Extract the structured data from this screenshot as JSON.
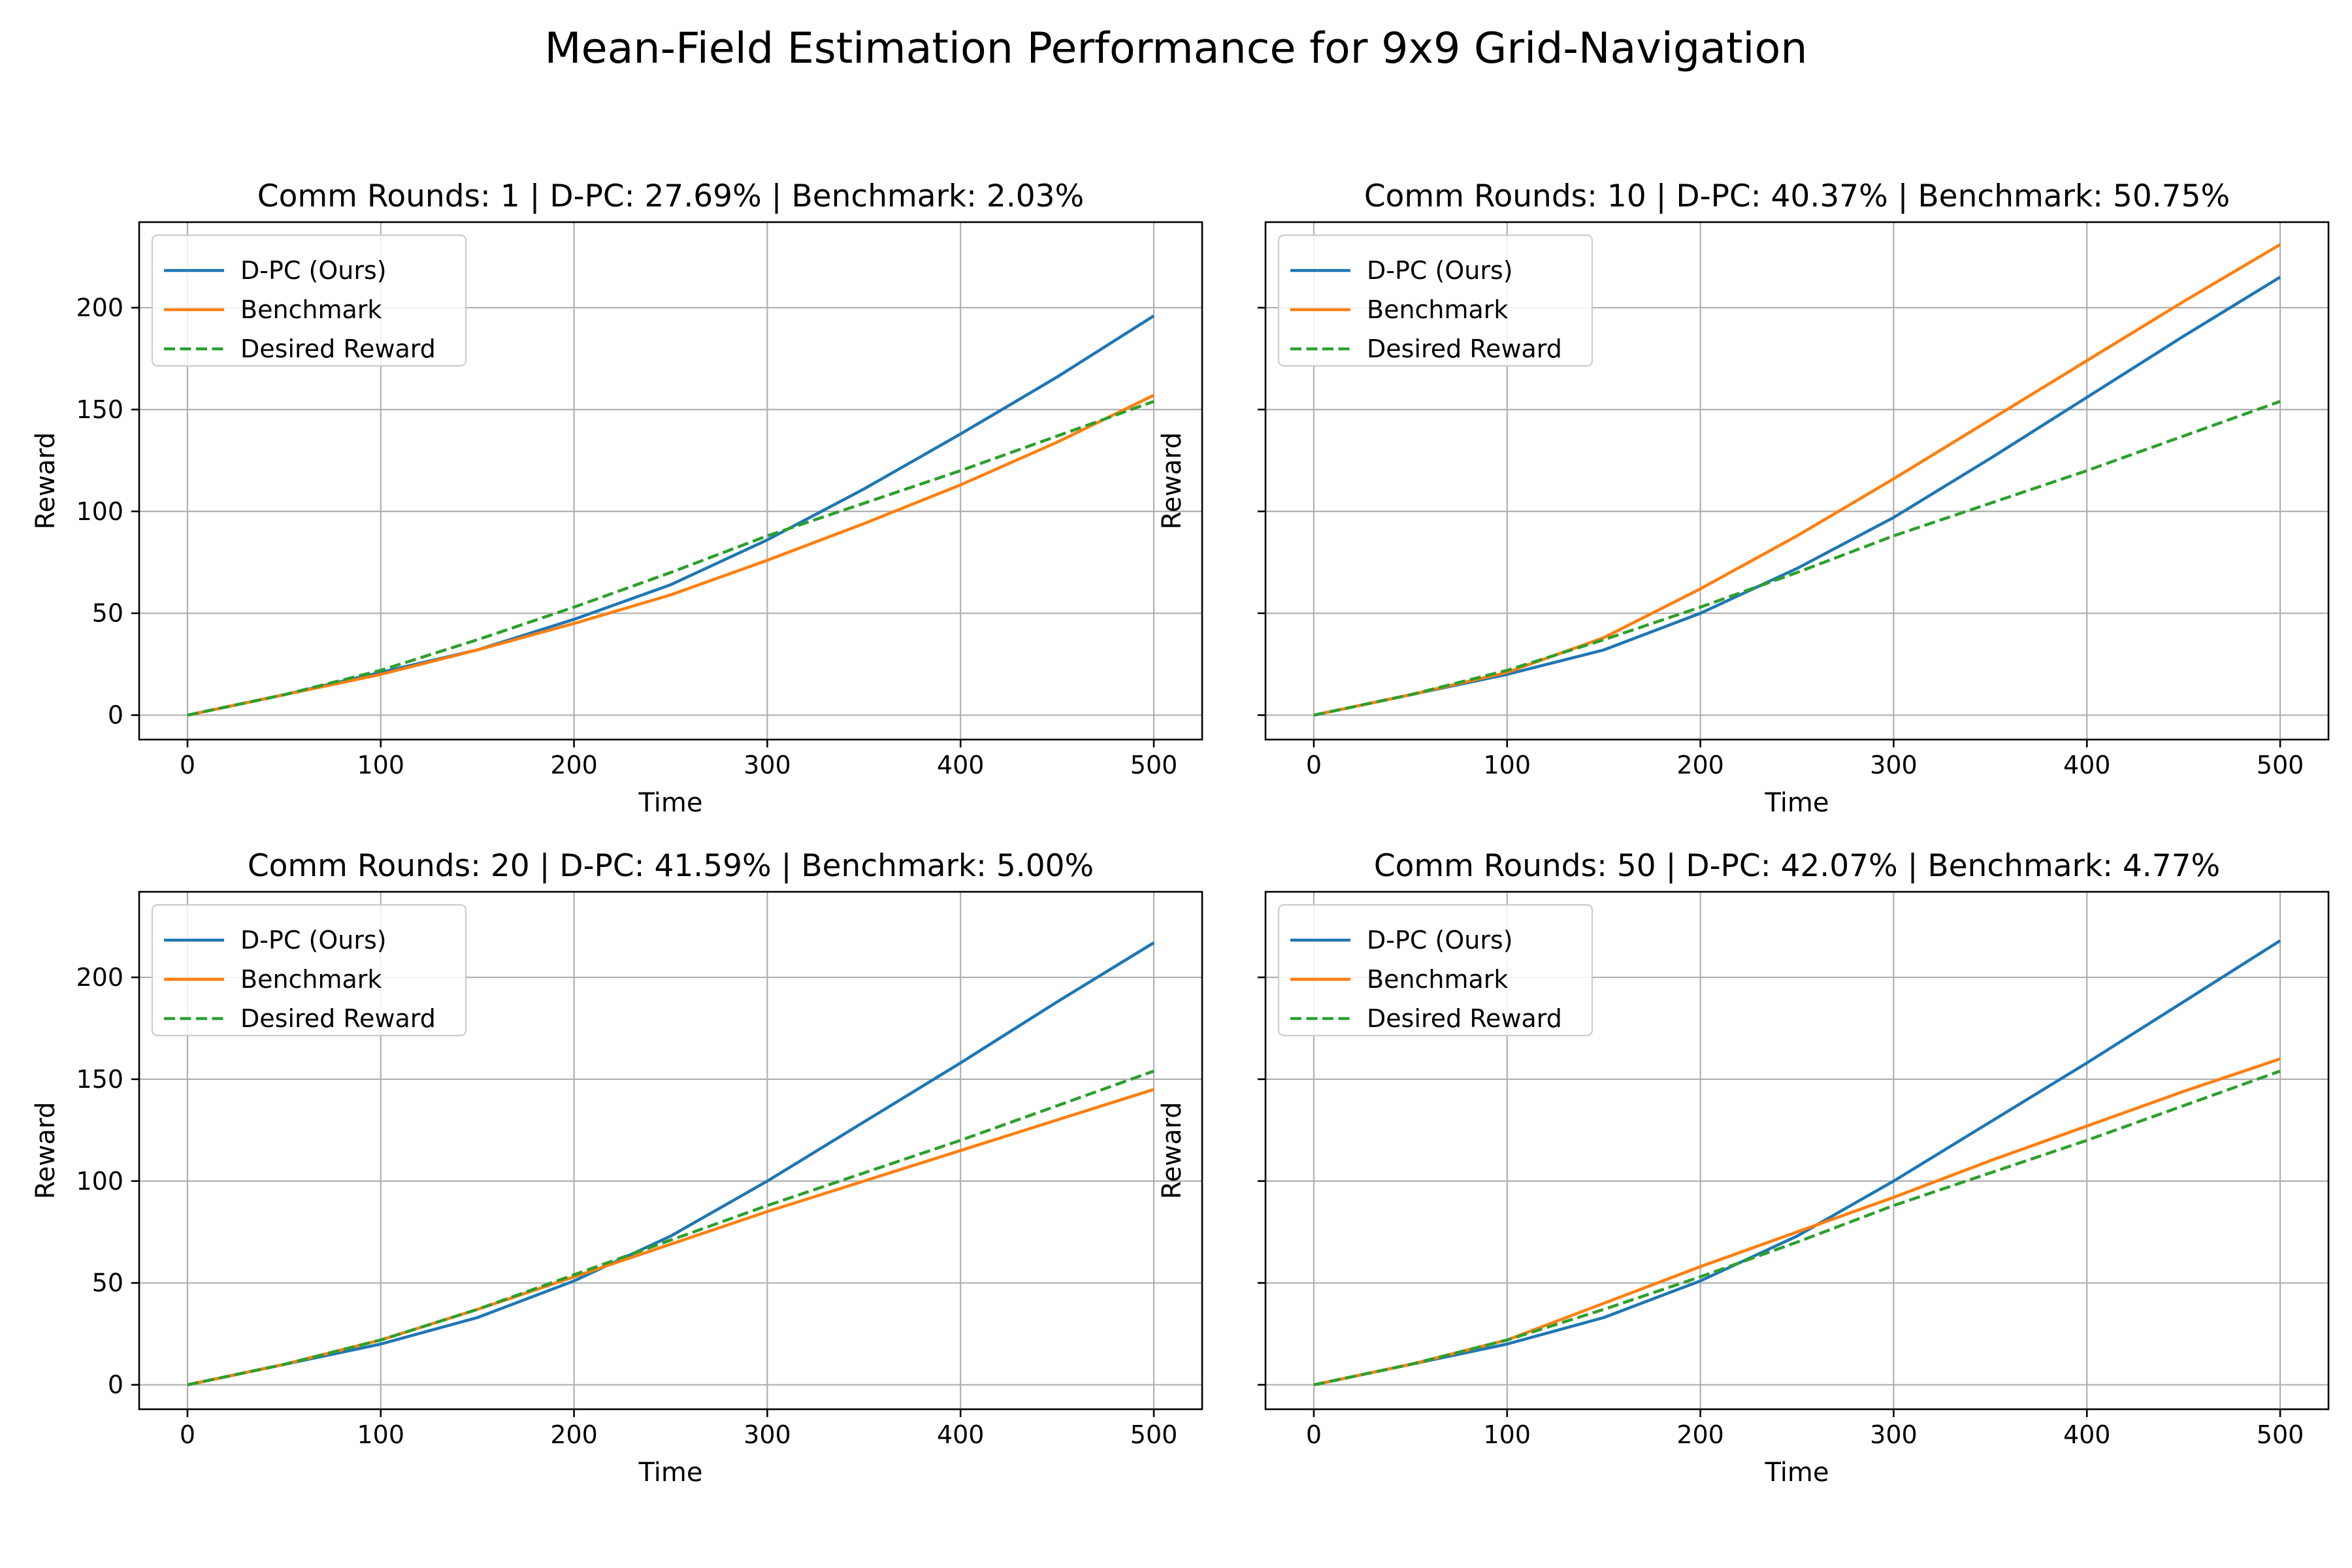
{
  "figure": {
    "title": "Mean-Field Estimation Performance for 9x9 Grid-Navigation"
  },
  "colors": {
    "dpc": "#1f77b4",
    "benchmark": "#ff7f0e",
    "desired": "#2ca02c"
  },
  "chart_data": [
    {
      "type": "line",
      "title": "Comm Rounds: 1 | D-PC: 27.69% | Benchmark: 2.03%",
      "xlabel": "Time",
      "ylabel": "Reward",
      "xlim": [
        -25,
        525
      ],
      "ylim": [
        -12,
        242
      ],
      "xticks": [
        0,
        100,
        200,
        300,
        400,
        500
      ],
      "yticks": [
        0,
        50,
        100,
        150,
        200
      ],
      "grid": true,
      "legend": "top-left",
      "x": [
        0,
        50,
        100,
        150,
        200,
        250,
        300,
        350,
        400,
        450,
        500
      ],
      "series": [
        {
          "name": "D-PC (Ours)",
          "style": "solid",
          "values": [
            0,
            10,
            21,
            32,
            47,
            64,
            86,
            111,
            138,
            166,
            196
          ]
        },
        {
          "name": "Benchmark",
          "style": "solid",
          "values": [
            0,
            10,
            20,
            32,
            45,
            59,
            76,
            94,
            113,
            134,
            157
          ]
        },
        {
          "name": "Desired Reward",
          "style": "dashed",
          "values": [
            0,
            10,
            22,
            37,
            53,
            70,
            88,
            104,
            120,
            137,
            154
          ]
        }
      ]
    },
    {
      "type": "line",
      "title": "Comm Rounds: 10 | D-PC: 40.37% | Benchmark: 50.75%",
      "xlabel": "Time",
      "ylabel": "Reward",
      "xlim": [
        -25,
        525
      ],
      "ylim": [
        -12,
        242
      ],
      "xticks": [
        0,
        100,
        200,
        300,
        400,
        500
      ],
      "yticks": [
        0,
        50,
        100,
        150,
        200
      ],
      "grid": true,
      "legend": "top-left",
      "x": [
        0,
        50,
        100,
        150,
        200,
        250,
        300,
        350,
        400,
        450,
        500
      ],
      "series": [
        {
          "name": "D-PC (Ours)",
          "style": "solid",
          "values": [
            0,
            10,
            20,
            32,
            50,
            72,
            97,
            126,
            156,
            186,
            215
          ]
        },
        {
          "name": "Benchmark",
          "style": "solid",
          "values": [
            0,
            10,
            21,
            38,
            62,
            88,
            116,
            145,
            174,
            203,
            231
          ]
        },
        {
          "name": "Desired Reward",
          "style": "dashed",
          "values": [
            0,
            10,
            22,
            37,
            53,
            70,
            88,
            104,
            120,
            137,
            154
          ]
        }
      ]
    },
    {
      "type": "line",
      "title": "Comm Rounds: 20 | D-PC: 41.59% | Benchmark: 5.00%",
      "xlabel": "Time",
      "ylabel": "Reward",
      "xlim": [
        -25,
        525
      ],
      "ylim": [
        -12,
        242
      ],
      "xticks": [
        0,
        100,
        200,
        300,
        400,
        500
      ],
      "yticks": [
        0,
        50,
        100,
        150,
        200
      ],
      "grid": true,
      "legend": "top-left",
      "x": [
        0,
        50,
        100,
        150,
        200,
        250,
        300,
        350,
        400,
        450,
        500
      ],
      "series": [
        {
          "name": "D-PC (Ours)",
          "style": "solid",
          "values": [
            0,
            10,
            20,
            33,
            51,
            73,
            100,
            129,
            158,
            188,
            217
          ]
        },
        {
          "name": "Benchmark",
          "style": "solid",
          "values": [
            0,
            10,
            22,
            37,
            53,
            69,
            85,
            100,
            115,
            130,
            145
          ]
        },
        {
          "name": "Desired Reward",
          "style": "dashed",
          "values": [
            0,
            10,
            22,
            37,
            54,
            71,
            88,
            104,
            120,
            137,
            154
          ]
        }
      ]
    },
    {
      "type": "line",
      "title": "Comm Rounds: 50 | D-PC: 42.07% | Benchmark: 4.77%",
      "xlabel": "Time",
      "ylabel": "Reward",
      "xlim": [
        -25,
        525
      ],
      "ylim": [
        -12,
        242
      ],
      "xticks": [
        0,
        100,
        200,
        300,
        400,
        500
      ],
      "yticks": [
        0,
        50,
        100,
        150,
        200
      ],
      "grid": true,
      "legend": "top-left",
      "x": [
        0,
        50,
        100,
        150,
        200,
        250,
        300,
        350,
        400,
        450,
        500
      ],
      "series": [
        {
          "name": "D-PC (Ours)",
          "style": "solid",
          "values": [
            0,
            10,
            20,
            33,
            51,
            73,
            100,
            129,
            158,
            188,
            218
          ]
        },
        {
          "name": "Benchmark",
          "style": "solid",
          "values": [
            0,
            10,
            22,
            40,
            58,
            75,
            92,
            110,
            127,
            144,
            160
          ]
        },
        {
          "name": "Desired Reward",
          "style": "dashed",
          "values": [
            0,
            10,
            22,
            37,
            53,
            70,
            88,
            104,
            120,
            137,
            154
          ]
        }
      ]
    }
  ]
}
